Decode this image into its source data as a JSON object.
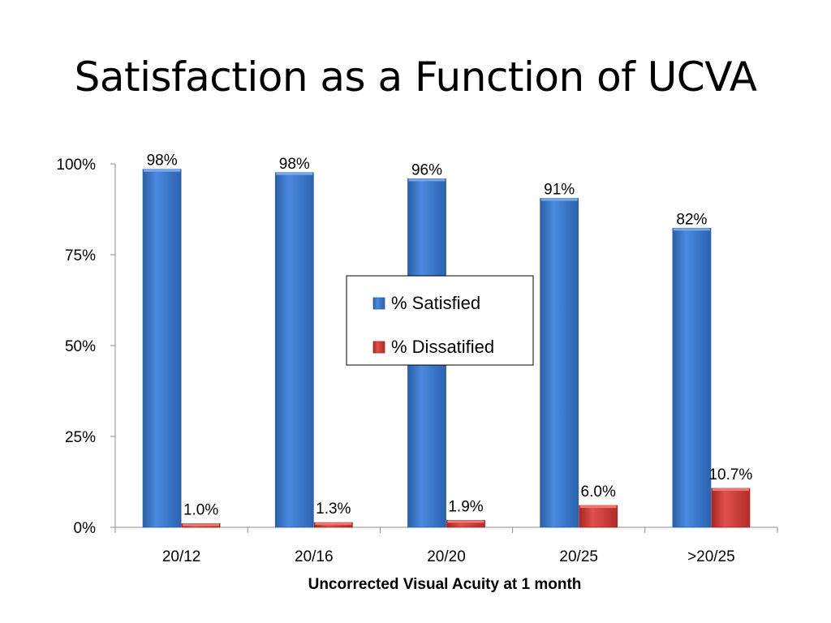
{
  "slide": {
    "title": "Satisfaction as a Function of UCVA"
  },
  "colors": {
    "satisfied": "#3d7bd0",
    "dissatisfied": "#d23a36",
    "axis": "#8c8c8c"
  },
  "chart_data": {
    "type": "bar",
    "title": "",
    "xlabel": "Uncorrected Visual Acuity at 1 month",
    "ylabel": "",
    "categories": [
      "20/12",
      "20/16",
      "20/20",
      "20/25",
      ">20/25"
    ],
    "series": [
      {
        "name": "% Satisfied",
        "values": [
          98.5,
          97.6,
          95.9,
          90.5,
          82.3
        ],
        "labels": [
          "98%",
          "98%",
          "96%",
          "91%",
          "82%"
        ]
      },
      {
        "name": "% Dissatified",
        "values": [
          1.0,
          1.3,
          1.9,
          6.0,
          10.7
        ],
        "labels": [
          "1.0%",
          "1.3%",
          "1.9%",
          "6.0%",
          "10.7%"
        ]
      }
    ],
    "ylim": [
      0,
      100
    ],
    "yticks": [
      0,
      25,
      50,
      75,
      100
    ],
    "ytick_labels": [
      "0%",
      "25%",
      "50%",
      "75%",
      "100%"
    ],
    "grid": false,
    "legend_position": "center"
  }
}
